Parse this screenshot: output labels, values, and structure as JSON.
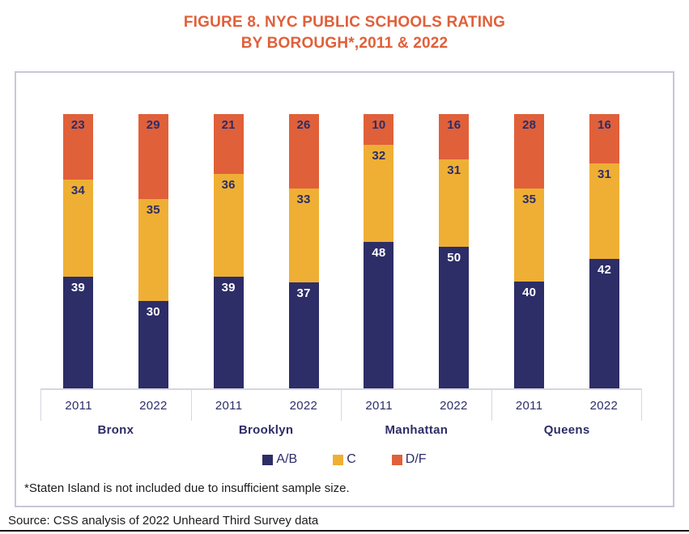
{
  "title": {
    "line1": "FIGURE 8. NYC PUBLIC SCHOOLS RATING",
    "line2": "BY BOROUGH*,2011 & 2022"
  },
  "chart_data": {
    "type": "bar",
    "variant": "stacked-normalized-column",
    "title": "FIGURE 8. NYC PUBLIC SCHOOLS RATING BY BOROUGH*, 2011 & 2022",
    "legend_position": "bottom",
    "grid": false,
    "series": [
      {
        "name": "A/B",
        "color": "#2D2D68",
        "label_color": "#FFFFFF"
      },
      {
        "name": "C",
        "color": "#EFAF34",
        "label_color": "#2D2D68"
      },
      {
        "name": "D/F",
        "color": "#E0603A",
        "label_color": "#2D2D68"
      }
    ],
    "groups": [
      {
        "label": "Bronx",
        "bars": [
          {
            "year": "2011",
            "values": [
              39,
              34,
              23
            ]
          },
          {
            "year": "2022",
            "values": [
              30,
              35,
              29
            ]
          }
        ]
      },
      {
        "label": "Brooklyn",
        "bars": [
          {
            "year": "2011",
            "values": [
              39,
              36,
              21
            ]
          },
          {
            "year": "2022",
            "values": [
              37,
              33,
              26
            ]
          }
        ]
      },
      {
        "label": "Manhattan",
        "bars": [
          {
            "year": "2011",
            "values": [
              48,
              32,
              10
            ]
          },
          {
            "year": "2022",
            "values": [
              50,
              31,
              16
            ]
          }
        ]
      },
      {
        "label": "Queens",
        "bars": [
          {
            "year": "2011",
            "values": [
              40,
              35,
              28
            ]
          },
          {
            "year": "2022",
            "values": [
              42,
              31,
              16
            ]
          }
        ]
      }
    ]
  },
  "footnote": "*Staten Island is not included due to insufficient sample size.",
  "source": "Source: CSS analysis of 2022 Unheard Third Survey data"
}
